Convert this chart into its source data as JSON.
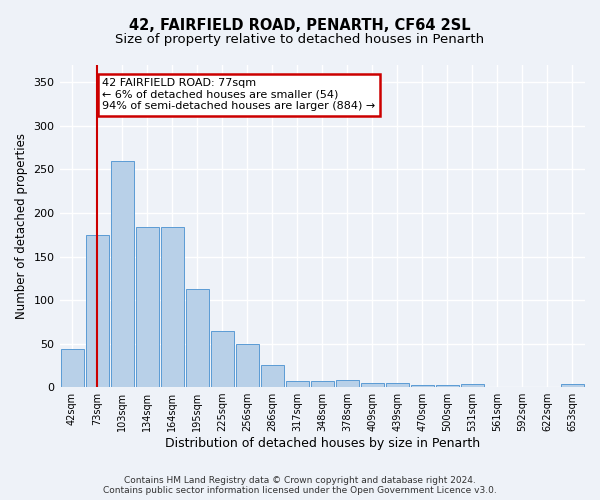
{
  "title": "42, FAIRFIELD ROAD, PENARTH, CF64 2SL",
  "subtitle": "Size of property relative to detached houses in Penarth",
  "xlabel": "Distribution of detached houses by size in Penarth",
  "ylabel": "Number of detached properties",
  "categories": [
    "42sqm",
    "73sqm",
    "103sqm",
    "134sqm",
    "164sqm",
    "195sqm",
    "225sqm",
    "256sqm",
    "286sqm",
    "317sqm",
    "348sqm",
    "378sqm",
    "409sqm",
    "439sqm",
    "470sqm",
    "500sqm",
    "531sqm",
    "561sqm",
    "592sqm",
    "622sqm",
    "653sqm"
  ],
  "values": [
    44,
    175,
    260,
    184,
    184,
    113,
    65,
    50,
    25,
    7,
    7,
    8,
    5,
    5,
    2,
    2,
    3,
    0,
    0,
    0,
    3
  ],
  "bar_color": "#b8d0e8",
  "bar_edge_color": "#5b9bd5",
  "reference_line_x": 1,
  "reference_line_color": "#cc0000",
  "annotation_line1": "42 FAIRFIELD ROAD: 77sqm",
  "annotation_line2": "← 6% of detached houses are smaller (54)",
  "annotation_line3": "94% of semi-detached houses are larger (884) →",
  "annotation_box_color": "#ffffff",
  "annotation_box_edge_color": "#cc0000",
  "ylim": [
    0,
    370
  ],
  "background_color": "#eef2f8",
  "grid_color": "#ffffff",
  "footer_text": "Contains HM Land Registry data © Crown copyright and database right 2024.\nContains public sector information licensed under the Open Government Licence v3.0.",
  "title_fontsize": 10.5,
  "subtitle_fontsize": 9.5,
  "xlabel_fontsize": 9,
  "ylabel_fontsize": 8.5,
  "tick_fontsize": 7,
  "annotation_fontsize": 8,
  "footer_fontsize": 6.5
}
